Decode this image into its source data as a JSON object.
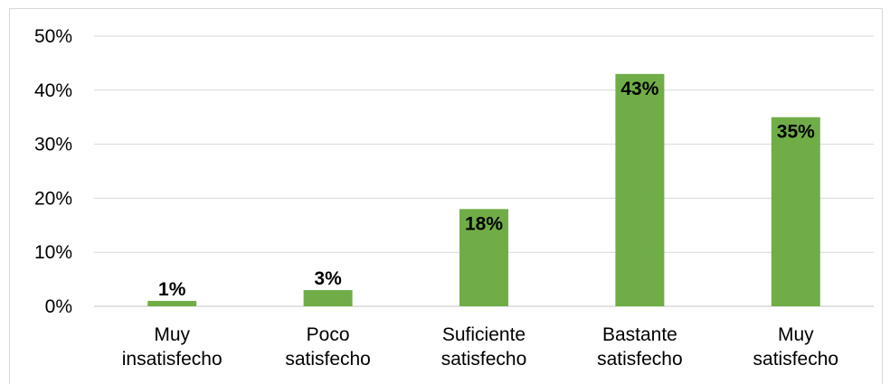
{
  "chart_data": {
    "type": "bar",
    "categories": [
      [
        "Muy",
        "insatisfecho"
      ],
      [
        "Poco",
        "satisfecho"
      ],
      [
        "Suficiente",
        "satisfecho"
      ],
      [
        "Bastante",
        "satisfecho"
      ],
      [
        "Muy",
        "satisfecho"
      ]
    ],
    "values": [
      1,
      3,
      18,
      43,
      35
    ],
    "data_labels": [
      "1%",
      "3%",
      "18%",
      "43%",
      "35%"
    ],
    "ylim": [
      0,
      50
    ],
    "yticks": [
      0,
      10,
      20,
      30,
      40,
      50
    ],
    "ytick_labels": [
      "0%",
      "10%",
      "20%",
      "30%",
      "40%",
      "50%"
    ],
    "title": "",
    "xlabel": "",
    "ylabel": "",
    "grid": true,
    "bar_color": "#70ad47",
    "grid_color": "#d9d9d9"
  }
}
